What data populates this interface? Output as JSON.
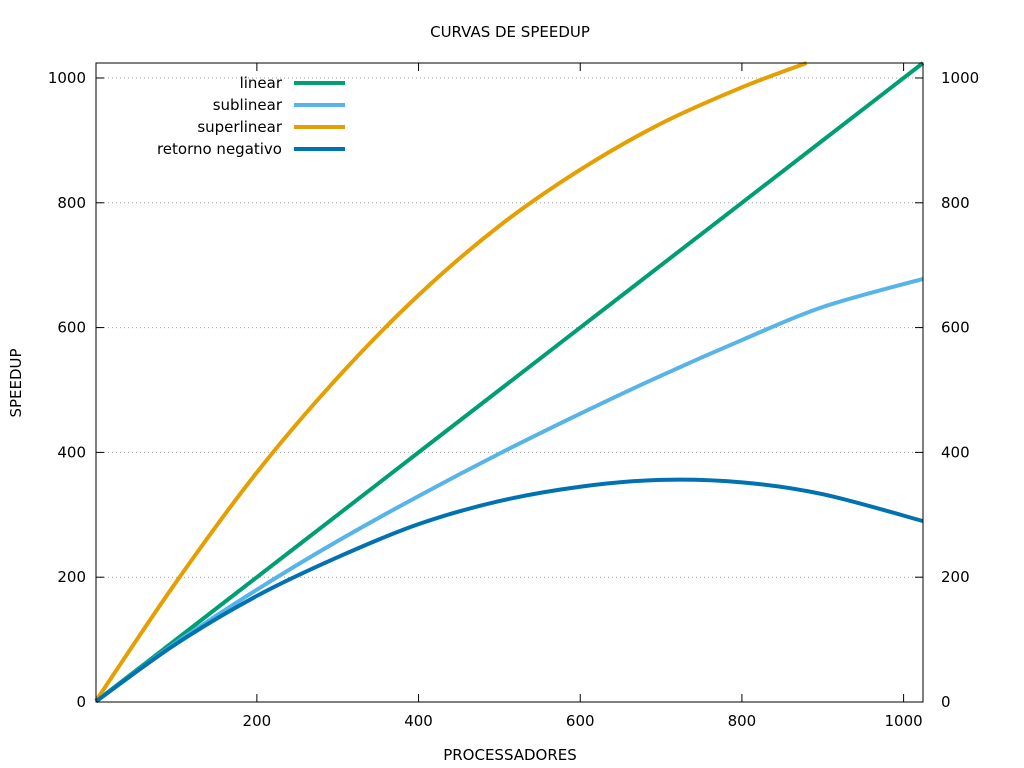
{
  "chart_data": {
    "type": "line",
    "title": "CURVAS DE SPEEDUP",
    "xlabel": "PROCESSADORES",
    "ylabel": "SPEEDUP",
    "xlim": [
      1,
      1024
    ],
    "ylim": [
      0,
      1024
    ],
    "x_ticks": [
      200,
      400,
      600,
      800,
      1000
    ],
    "y_ticks": [
      0,
      200,
      400,
      600,
      800,
      1000
    ],
    "y2_ticks": [
      0,
      200,
      400,
      600,
      800,
      1000
    ],
    "grid": true,
    "legend_position": "top-left",
    "series": [
      {
        "name": "linear",
        "color": "#009e73",
        "x": [
          1,
          100,
          200,
          300,
          400,
          500,
          600,
          700,
          800,
          900,
          1024
        ],
        "y": [
          1,
          100,
          200,
          300,
          400,
          500,
          600,
          700,
          800,
          900,
          1024
        ]
      },
      {
        "name": "sublinear",
        "color": "#56b4e9",
        "x": [
          1,
          100,
          200,
          300,
          400,
          500,
          600,
          700,
          800,
          900,
          1024
        ],
        "y": [
          1,
          95,
          180,
          258,
          330,
          398,
          462,
          523,
          580,
          633,
          678
        ]
      },
      {
        "name": "superlinear",
        "color": "#e69f00",
        "x": [
          1,
          100,
          200,
          300,
          400,
          500,
          600,
          700,
          800,
          880
        ],
        "y": [
          2,
          192,
          368,
          520,
          652,
          763,
          853,
          927,
          985,
          1024
        ]
      },
      {
        "name": "retorno negativo",
        "color": "#0072b2",
        "x": [
          1,
          100,
          200,
          300,
          400,
          500,
          600,
          700,
          800,
          900,
          1024
        ],
        "y": [
          1,
          93,
          170,
          232,
          285,
          322,
          345,
          356,
          352,
          333,
          290
        ]
      }
    ]
  }
}
